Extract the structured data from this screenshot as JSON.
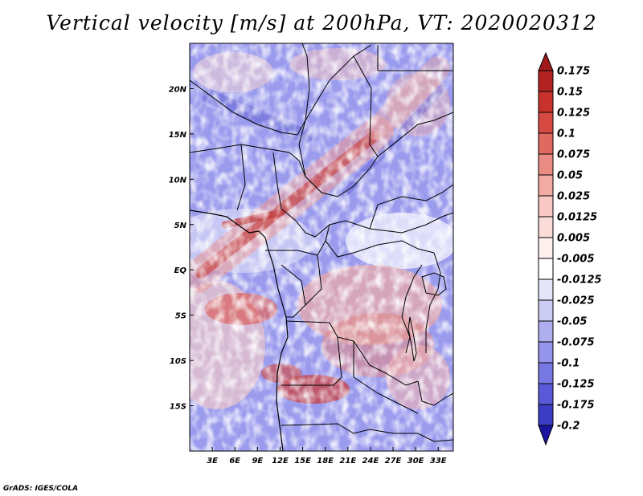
{
  "title": "Vertical velocity [m/s] at 200hPa, VT: 2020020312",
  "credit": "GrADS: IGES/COLA",
  "map": {
    "lon_range": [
      0,
      35
    ],
    "lat_range": [
      -20,
      25
    ],
    "lat_ticks": [
      {
        "value": 20,
        "label": "20N"
      },
      {
        "value": 15,
        "label": "15N"
      },
      {
        "value": 10,
        "label": "10N"
      },
      {
        "value": 5,
        "label": "5N"
      },
      {
        "value": 0,
        "label": "EQ"
      },
      {
        "value": -5,
        "label": "5S"
      },
      {
        "value": -10,
        "label": "10S"
      },
      {
        "value": -15,
        "label": "15S"
      }
    ],
    "lon_ticks": [
      {
        "value": 3,
        "label": "3E"
      },
      {
        "value": 6,
        "label": "6E"
      },
      {
        "value": 9,
        "label": "9E"
      },
      {
        "value": 12,
        "label": "12E"
      },
      {
        "value": 15,
        "label": "15E"
      },
      {
        "value": 18,
        "label": "18E"
      },
      {
        "value": 21,
        "label": "21E"
      },
      {
        "value": 24,
        "label": "24E"
      },
      {
        "value": 27,
        "label": "27E"
      },
      {
        "value": 30,
        "label": "30E"
      },
      {
        "value": 33,
        "label": "33E"
      }
    ]
  },
  "colorbar": {
    "top_color": "#a01a1a",
    "bottom_color": "#1a14a0",
    "levels": [
      {
        "label": "0.175",
        "color": "#b22222"
      },
      {
        "label": "0.15",
        "color": "#c8322c"
      },
      {
        "label": "0.125",
        "color": "#d64a43"
      },
      {
        "label": "0.1",
        "color": "#e06a62"
      },
      {
        "label": "0.075",
        "color": "#ea8c84"
      },
      {
        "label": "0.05",
        "color": "#f2aaa4"
      },
      {
        "label": "0.025",
        "color": "#f7c8c4"
      },
      {
        "label": "0.0125",
        "color": "#fadcd9"
      },
      {
        "label": "0.005",
        "color": "#fdf0ef"
      },
      {
        "label": "-0.005",
        "color": "#ffffff"
      },
      {
        "label": "-0.0125",
        "color": "#e6e6fa"
      },
      {
        "label": "-0.025",
        "color": "#ccccf4"
      },
      {
        "label": "-0.05",
        "color": "#afaff0"
      },
      {
        "label": "-0.075",
        "color": "#9494ea"
      },
      {
        "label": "-0.1",
        "color": "#7878e4"
      },
      {
        "label": "-0.125",
        "color": "#5a5ad8"
      },
      {
        "label": "-0.175",
        "color": "#3c3cc4"
      },
      {
        "label": "-0.2",
        "color": "#2a24b0"
      }
    ]
  }
}
